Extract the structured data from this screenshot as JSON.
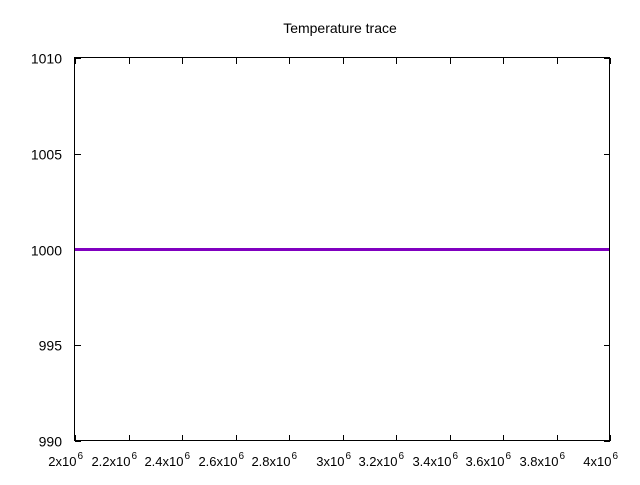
{
  "chart_data": {
    "type": "line",
    "title": "Temperature trace",
    "xlabel": "",
    "ylabel": "",
    "xlim": [
      2000000,
      4000000
    ],
    "ylim": [
      990,
      1010
    ],
    "x_ticks": [
      {
        "value": 2000000,
        "mantissa": "2x10",
        "exponent": "6"
      },
      {
        "value": 2200000,
        "mantissa": "2.2x10",
        "exponent": "6"
      },
      {
        "value": 2400000,
        "mantissa": "2.4x10",
        "exponent": "6"
      },
      {
        "value": 2600000,
        "mantissa": "2.6x10",
        "exponent": "6"
      },
      {
        "value": 2800000,
        "mantissa": "2.8x10",
        "exponent": "6"
      },
      {
        "value": 3000000,
        "mantissa": "3x10",
        "exponent": "6"
      },
      {
        "value": 3200000,
        "mantissa": "3.2x10",
        "exponent": "6"
      },
      {
        "value": 3400000,
        "mantissa": "3.4x10",
        "exponent": "6"
      },
      {
        "value": 3600000,
        "mantissa": "3.6x10",
        "exponent": "6"
      },
      {
        "value": 3800000,
        "mantissa": "3.8x10",
        "exponent": "6"
      },
      {
        "value": 4000000,
        "mantissa": "4x10",
        "exponent": "6"
      }
    ],
    "y_ticks": [
      {
        "value": 990,
        "label": "990"
      },
      {
        "value": 995,
        "label": "995"
      },
      {
        "value": 1000,
        "label": "1000"
      },
      {
        "value": 1005,
        "label": "1005"
      },
      {
        "value": 1010,
        "label": "1010"
      }
    ],
    "series": [
      {
        "color": "#8000c0",
        "x": [
          2000000,
          4000000
        ],
        "values": [
          1000,
          1000
        ]
      }
    ],
    "grid": false,
    "legend": "none"
  }
}
